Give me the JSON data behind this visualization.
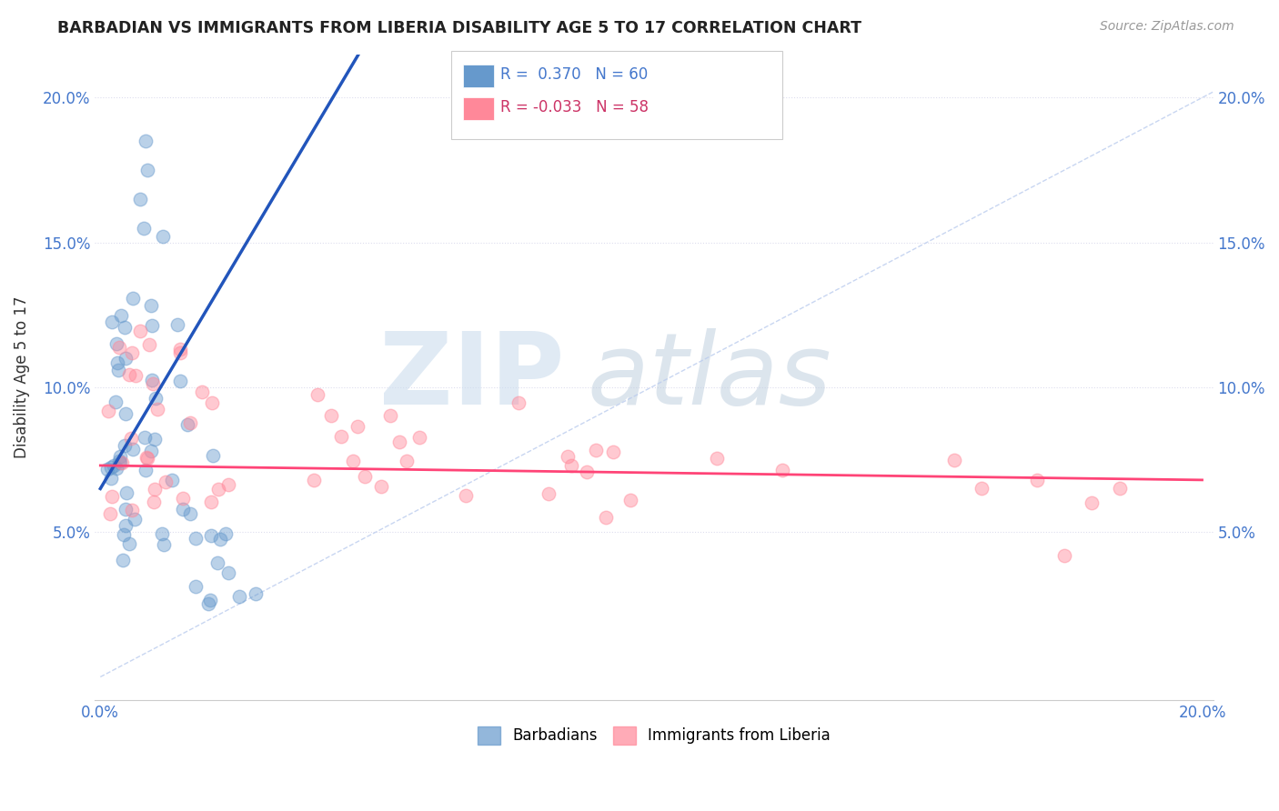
{
  "title": "BARBADIAN VS IMMIGRANTS FROM LIBERIA DISABILITY AGE 5 TO 17 CORRELATION CHART",
  "source": "Source: ZipAtlas.com",
  "ylabel": "Disability Age 5 to 17",
  "r_barbadian": 0.37,
  "n_barbadian": 60,
  "r_liberia": -0.033,
  "n_liberia": 58,
  "xlim": [
    -0.001,
    0.202
  ],
  "ylim": [
    -0.008,
    0.215
  ],
  "xtick_positions": [
    0.0,
    0.05,
    0.1,
    0.15,
    0.2
  ],
  "xtick_labels": [
    "0.0%",
    "",
    "",
    "",
    "20.0%"
  ],
  "ytick_positions": [
    0.05,
    0.1,
    0.15,
    0.2
  ],
  "ytick_labels": [
    "5.0%",
    "10.0%",
    "15.0%",
    "20.0%"
  ],
  "color_barbadian": "#6699CC",
  "color_liberia": "#FF8899",
  "color_line_barbadian": "#2255BB",
  "color_line_liberia": "#FF4477",
  "color_grid": "#DDDDEE",
  "color_diag": "#BBCCEE",
  "background_color": "#FFFFFF",
  "title_color": "#222222",
  "source_color": "#999999",
  "tick_color": "#4477CC",
  "ylabel_color": "#333333",
  "watermark_zip_color": "#CCDDEE",
  "watermark_atlas_color": "#BBCCDD"
}
